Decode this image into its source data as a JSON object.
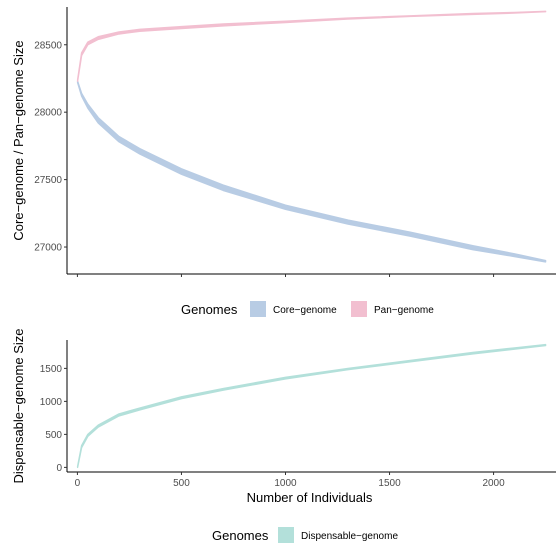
{
  "chart_data": [
    {
      "type": "area",
      "ylabel": "Core−genome / Pan−genome Size",
      "xlabel": "",
      "xlim": [
        -50,
        2300
      ],
      "ylim": [
        26800,
        28780
      ],
      "x_ticks": [
        0,
        500,
        1000,
        1500,
        2000
      ],
      "y_ticks": [
        27000,
        27500,
        28000,
        28500
      ],
      "y_tick_labels": [
        "27000",
        "27500",
        "28000",
        "28500"
      ],
      "x_tick_labels_shown": false,
      "grid": false,
      "legend": {
        "title": "Genomes",
        "position": "bottom",
        "entries": [
          {
            "label": "Core−genome",
            "color": "#b8cce4"
          },
          {
            "label": "Pan−genome",
            "color": "#f2bfd0"
          }
        ]
      },
      "series": [
        {
          "name": "Core−genome",
          "color": "#b8cce4",
          "x": [
            1,
            20,
            50,
            100,
            200,
            300,
            500,
            700,
            1000,
            1300,
            1600,
            1900,
            2100,
            2250
          ],
          "lower": [
            28220,
            28120,
            28030,
            27920,
            27780,
            27690,
            27540,
            27420,
            27280,
            27170,
            27080,
            26980,
            26930,
            26890
          ],
          "upper": [
            28230,
            28140,
            28060,
            27960,
            27820,
            27730,
            27580,
            27460,
            27310,
            27200,
            27110,
            27010,
            26950,
            26900
          ]
        },
        {
          "name": "Pan−genome",
          "color": "#f2bfd0",
          "x": [
            1,
            20,
            50,
            100,
            200,
            300,
            500,
            700,
            1000,
            1300,
            1600,
            1900,
            2100,
            2250
          ],
          "lower": [
            28230,
            28420,
            28500,
            28540,
            28580,
            28600,
            28620,
            28640,
            28665,
            28690,
            28710,
            28725,
            28735,
            28745
          ],
          "upper": [
            28240,
            28440,
            28520,
            28560,
            28595,
            28615,
            28635,
            28655,
            28675,
            28698,
            28715,
            28732,
            28740,
            28748
          ]
        }
      ]
    },
    {
      "type": "area",
      "ylabel": "Dispensable−genome Size",
      "xlabel": "Number of Individuals",
      "xlim": [
        -50,
        2300
      ],
      "ylim": [
        -70,
        1930
      ],
      "x_ticks": [
        0,
        500,
        1000,
        1500,
        2000
      ],
      "x_tick_labels": [
        "0",
        "500",
        "1000",
        "1500",
        "2000"
      ],
      "y_ticks": [
        0,
        500,
        1000,
        1500
      ],
      "y_tick_labels": [
        "0",
        "500",
        "1000",
        "1500"
      ],
      "grid": false,
      "legend": {
        "title": "Genomes",
        "position": "bottom",
        "entries": [
          {
            "label": "Dispensable−genome",
            "color": "#b3e0da"
          }
        ]
      },
      "series": [
        {
          "name": "Dispensable−genome",
          "color": "#b3e0da",
          "x": [
            1,
            20,
            50,
            100,
            200,
            300,
            500,
            700,
            1000,
            1300,
            1600,
            1900,
            2100,
            2250
          ],
          "lower": [
            0,
            300,
            470,
            610,
            780,
            870,
            1040,
            1170,
            1340,
            1480,
            1600,
            1720,
            1790,
            1845
          ],
          "upper": [
            15,
            330,
            500,
            640,
            810,
            900,
            1070,
            1195,
            1365,
            1500,
            1620,
            1740,
            1810,
            1860
          ]
        }
      ]
    }
  ]
}
